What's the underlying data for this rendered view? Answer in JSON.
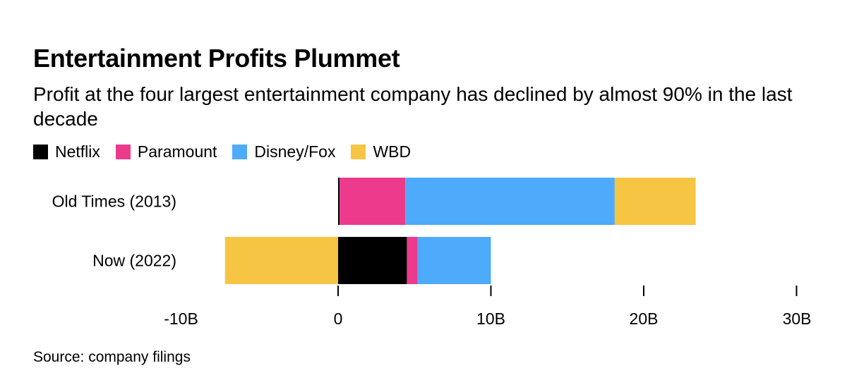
{
  "chart_data": {
    "type": "bar",
    "orientation": "horizontal",
    "stacked": true,
    "title": "Entertainment Profits Plummet",
    "subtitle": "Profit at the four largest entertainment company has declined by almost 90% in the last decade",
    "categories": [
      "Old Times (2013)",
      "Now (2022)"
    ],
    "series": [
      {
        "name": "Netflix",
        "color": "#000000",
        "values": [
          0.1,
          4.5
        ]
      },
      {
        "name": "Paramount",
        "color": "#ec3a8c",
        "values": [
          4.3,
          0.7
        ]
      },
      {
        "name": "Disney/Fox",
        "color": "#4eaafb",
        "values": [
          13.7,
          4.8
        ]
      },
      {
        "name": "WBD",
        "color": "#f6c544",
        "values": [
          5.3,
          -7.4
        ]
      }
    ],
    "xlim": [
      -10,
      30
    ],
    "x_ticks": [
      -10,
      0,
      10,
      20,
      30
    ],
    "x_tick_labels": [
      "-10B",
      "0",
      "10B",
      "20B",
      "30B"
    ],
    "xlabel": "",
    "ylabel": "",
    "legend_position": "top-left",
    "grid": false
  },
  "source": "Source: company filings"
}
